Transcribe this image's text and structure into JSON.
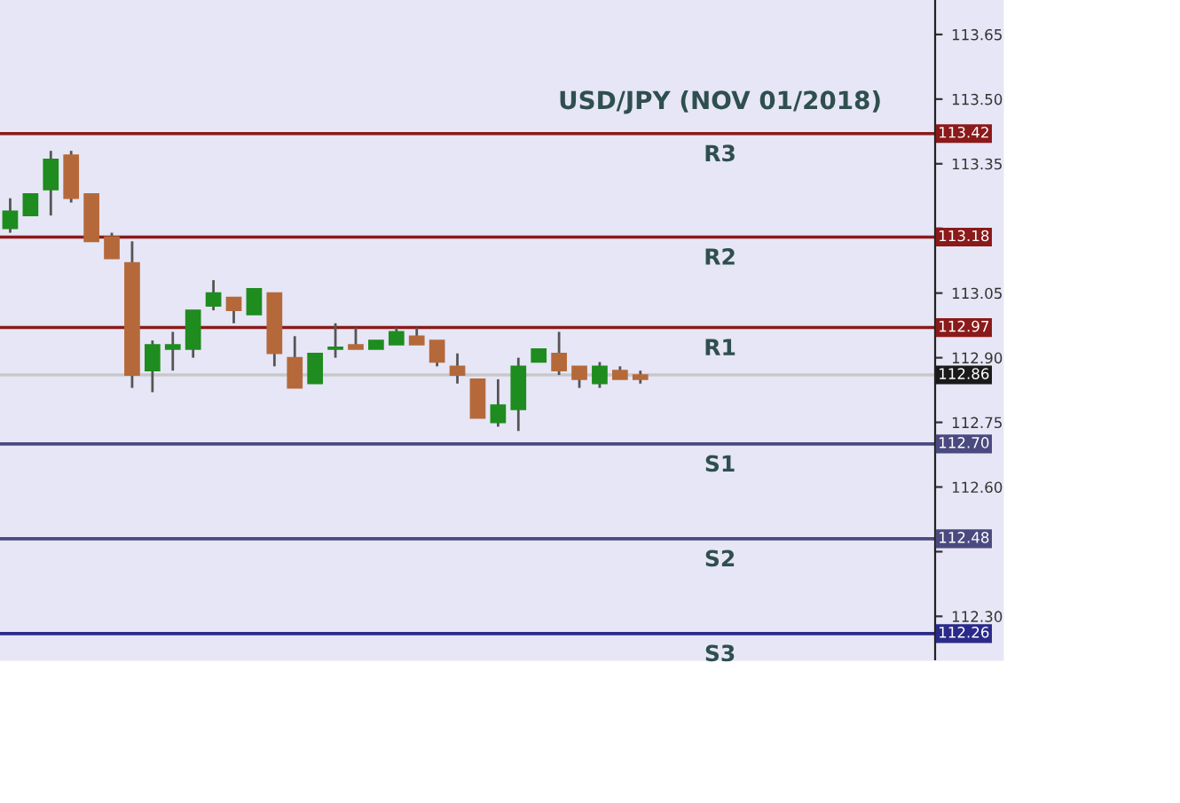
{
  "chart_data": {
    "type": "candlestick",
    "title": "USD/JPY (NOV 01/2018)",
    "categories": [
      null,
      null,
      null,
      null,
      null,
      null,
      null,
      null,
      null,
      null,
      null,
      null,
      null,
      null,
      null,
      null,
      null,
      null,
      null,
      null,
      null,
      null,
      null,
      null,
      null,
      null,
      null,
      null,
      null,
      null,
      null,
      null,
      null,
      null,
      null,
      null,
      null,
      null,
      null,
      null,
      null,
      null,
      null,
      null,
      null,
      null
    ],
    "ohlc": [
      [
        113.2,
        113.27,
        113.19,
        113.24
      ],
      [
        113.23,
        113.28,
        113.23,
        113.28
      ],
      [
        113.29,
        113.38,
        113.23,
        113.36
      ],
      [
        113.37,
        113.38,
        113.26,
        113.27
      ],
      [
        113.28,
        113.28,
        113.17,
        113.17
      ],
      [
        113.18,
        113.19,
        113.13,
        113.13
      ],
      [
        113.12,
        113.17,
        112.83,
        112.86
      ],
      [
        112.87,
        112.94,
        112.82,
        112.93
      ],
      [
        112.92,
        112.96,
        112.87,
        112.93
      ],
      [
        112.92,
        113.01,
        112.9,
        113.01
      ],
      [
        113.02,
        113.08,
        113.01,
        113.05
      ],
      [
        113.04,
        113.04,
        112.98,
        113.01
      ],
      [
        113.0,
        113.06,
        113.0,
        113.06
      ],
      [
        113.05,
        113.05,
        112.88,
        112.91
      ],
      [
        112.9,
        112.95,
        112.83,
        112.83
      ],
      [
        112.84,
        112.91,
        112.84,
        112.91
      ],
      [
        112.92,
        112.98,
        112.9,
        112.92
      ],
      [
        112.93,
        112.97,
        112.92,
        112.92
      ],
      [
        112.92,
        112.94,
        112.92,
        112.94
      ],
      [
        112.93,
        112.97,
        112.93,
        112.96
      ],
      [
        112.95,
        112.97,
        112.93,
        112.93
      ],
      [
        112.94,
        112.94,
        112.88,
        112.89
      ],
      [
        112.88,
        112.91,
        112.84,
        112.86
      ],
      [
        112.85,
        112.85,
        112.76,
        112.76
      ],
      [
        112.75,
        112.85,
        112.74,
        112.79
      ],
      [
        112.78,
        112.9,
        112.73,
        112.88
      ],
      [
        112.89,
        112.92,
        112.89,
        112.92
      ],
      [
        112.91,
        112.96,
        112.86,
        112.87
      ],
      [
        112.88,
        112.88,
        112.83,
        112.85
      ],
      [
        112.84,
        112.89,
        112.83,
        112.88
      ],
      [
        112.87,
        112.88,
        112.85,
        112.85
      ],
      [
        112.86,
        112.87,
        112.84,
        112.85
      ],
      null,
      null,
      null,
      null,
      null,
      null,
      null,
      null,
      null,
      null,
      null,
      null,
      null,
      null
    ],
    "colors": [
      "#1e8c1e",
      "#1e8c1e",
      "#1e8c1e",
      "#b5693a",
      "#b5693a",
      "#b5693a",
      "#b5693a",
      "#1e8c1e",
      "#1e8c1e",
      "#1e8c1e",
      "#1e8c1e",
      "#b5693a",
      "#1e8c1e",
      "#b5693a",
      "#b5693a",
      "#1e8c1e",
      "#1e8c1e",
      "#b5693a",
      "#1e8c1e",
      "#1e8c1e",
      "#b5693a",
      "#b5693a",
      "#b5693a",
      "#b5693a",
      "#1e8c1e",
      "#1e8c1e",
      "#1e8c1e",
      "#b5693a",
      "#b5693a",
      "#1e8c1e",
      "#b5693a",
      "#b5693a",
      null,
      null,
      null,
      null,
      null,
      null,
      null,
      null,
      null,
      null,
      null,
      null,
      null,
      null
    ],
    "ylim": [
      112.2,
      113.73
    ],
    "yticks": [
      {
        "value": 112.3,
        "label": "112.30"
      },
      {
        "value": 112.45,
        "label": null
      },
      {
        "value": 112.6,
        "label": "112.60"
      },
      {
        "value": 112.75,
        "label": "112.75"
      },
      {
        "value": 112.9,
        "label": "112.90"
      },
      {
        "value": 113.05,
        "label": "113.05"
      },
      {
        "value": 113.2,
        "label": null
      },
      {
        "value": 113.35,
        "label": "113.35"
      },
      {
        "value": 113.5,
        "label": "113.50"
      },
      {
        "value": 113.65,
        "label": "113.65"
      }
    ],
    "tick_labels": "y",
    "ref_lines": [
      {
        "axis": "y",
        "value": 113.42,
        "label": "113.42",
        "color": "#8b1a1a"
      },
      {
        "axis": "y",
        "value": 113.18,
        "label": "113.18",
        "color": "#8b1a1a"
      },
      {
        "axis": "y",
        "value": 112.97,
        "label": "112.97",
        "color": "#8b1a1a"
      },
      {
        "axis": "y",
        "value": 112.86,
        "label": "112.86",
        "color": "#c8c8c8"
      },
      {
        "axis": "y",
        "value": 112.7,
        "label": "112.70",
        "color": "#4a4a80"
      },
      {
        "axis": "y",
        "value": 112.48,
        "label": "112.48",
        "color": "#4a4a80"
      },
      {
        "axis": "y",
        "value": 112.26,
        "label": "112.26",
        "color": "#2a2a8a"
      }
    ],
    "annotations": [
      {
        "text": "R3",
        "y": 113.42
      },
      {
        "text": "R2",
        "y": 113.18
      },
      {
        "text": "R1",
        "y": 112.97
      },
      {
        "text": "S1",
        "y": 112.7
      },
      {
        "text": "S2",
        "y": 112.48
      },
      {
        "text": "S3",
        "y": 112.26
      }
    ]
  }
}
